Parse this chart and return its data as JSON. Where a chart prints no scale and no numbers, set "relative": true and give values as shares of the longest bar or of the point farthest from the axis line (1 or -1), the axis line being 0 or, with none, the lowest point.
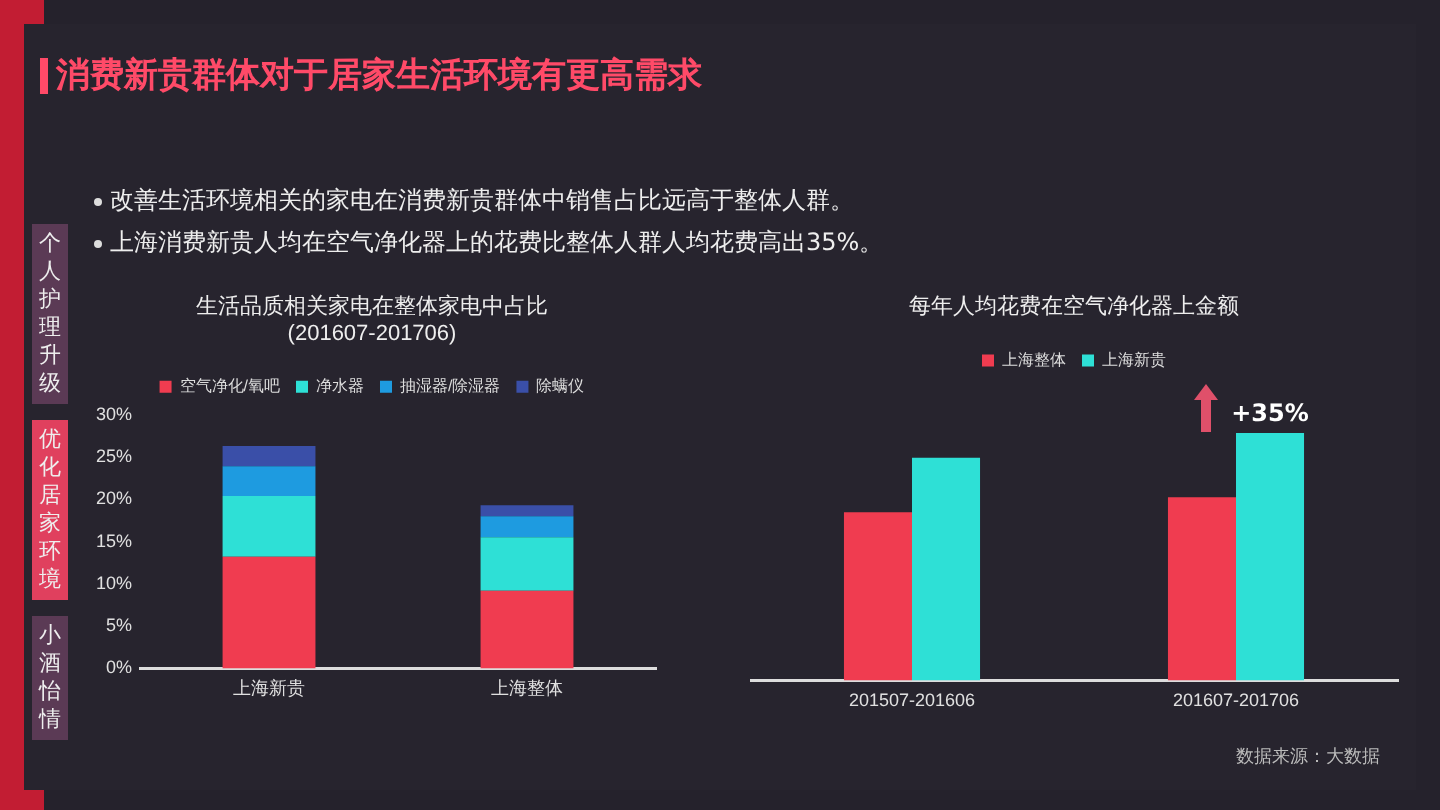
{
  "chart_data": [
    {
      "type": "other",
      "title": "消费新贵群体对于居家生活环境有更高需求",
      "annotations": [
        "改善生活环境相关的家电在消费新贵群体中销售占比远高于整体人群。",
        "上海消费新贵人均在空气净化器上的花费比整体人群人均花费高出35%。",
        "个人护理升级",
        "优化居家环境",
        "小酒怡情"
      ]
    },
    {
      "type": "bar",
      "title": "生活品质相关家电在整体家电中占比\n(201607-201706)",
      "categories": [
        "上海新贵",
        "上海整体"
      ],
      "stacked": true,
      "series": [
        {
          "name": "空气净化/氧吧",
          "color": "#f03c50",
          "values": [
            13.2,
            9.2
          ]
        },
        {
          "name": "净水器",
          "color": "#2ee0d6",
          "values": [
            7.2,
            6.3
          ]
        },
        {
          "name": "抽湿器/除湿器",
          "color": "#1e9be0",
          "values": [
            3.5,
            2.5
          ]
        },
        {
          "name": "除螨仪",
          "color": "#3a4fa8",
          "values": [
            2.4,
            1.3
          ]
        }
      ],
      "ylim": [
        0,
        30
      ],
      "yticks": [
        {
          "value": 0,
          "label": "0%"
        },
        {
          "value": 5,
          "label": "5%"
        },
        {
          "value": 10,
          "label": "10%"
        },
        {
          "value": 15,
          "label": "15%"
        },
        {
          "value": 20,
          "label": "20%"
        },
        {
          "value": 25,
          "label": "25%"
        },
        {
          "value": 30,
          "label": "30%"
        }
      ],
      "grid": false,
      "legend": "top"
    },
    {
      "type": "bar",
      "title": "每年人均花费在空气净化器上金额",
      "categories": [
        "201507-201606",
        "201607-201706"
      ],
      "relative": true,
      "series": [
        {
          "name": "上海整体",
          "color": "#f03c50",
          "values": [
            0.68,
            0.74
          ]
        },
        {
          "name": "上海新贵",
          "color": "#2ee0d6",
          "values": [
            0.9,
            1
          ]
        }
      ],
      "annotations": [
        {
          "text": "+35%",
          "x": "201607-201706",
          "y": 1
        },
        "数据来源：大数据"
      ],
      "grid": false,
      "legend": "top"
    }
  ]
}
